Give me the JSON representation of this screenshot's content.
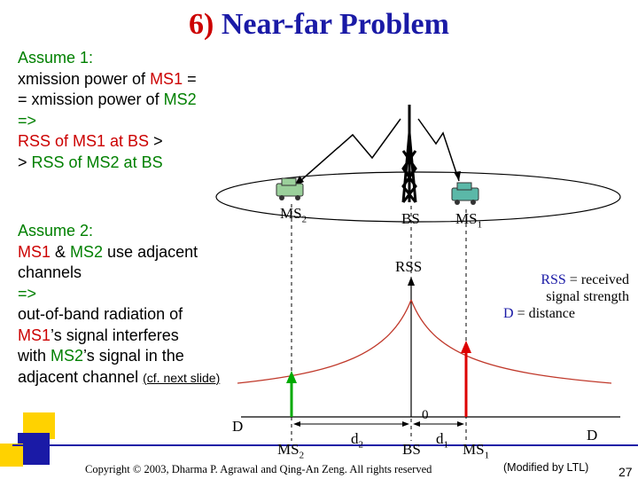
{
  "title": {
    "number": "6)",
    "text": "Near-far Problem"
  },
  "assume1": {
    "heading": "Assume 1:",
    "l1_pre": "xmission power of ",
    "l1_ms": "MS1",
    "l1_post": " =",
    "l2_pre": "= xmission power of ",
    "l2_ms": "MS2",
    "l3": "=>",
    "l4_a": "RSS of MS1 at BS",
    "l4_b": " >",
    "l5_a": "> ",
    "l5_b": "RSS of MS2 at BS"
  },
  "assume2": {
    "heading": "Assume 2:",
    "l1_ms1": "MS1",
    "l1_amp": " & ",
    "l1_ms2": "MS2",
    "l1_post": " use adjacent",
    "l2": "channels",
    "l3": "=>",
    "l4": "out-of-band radiation of",
    "l5_ms": "MS1",
    "l5_post": "’s signal interferes",
    "l6_pre": "with ",
    "l6_ms": "MS2",
    "l6_post": "’s signal in the",
    "l7": "adjacent channel ",
    "link": "(cf. next slide)"
  },
  "diagram": {
    "ms2": "MS",
    "ms2_sub": "2",
    "bs": "BS",
    "ms1": "MS",
    "ms1_sub": "1",
    "rss": "RSS",
    "zero": "0",
    "d_left": "D",
    "d_right": "D",
    "ms2_bottom": "MS",
    "ms2_bottom_sub": "2",
    "d2": "d",
    "d2_sub": "2",
    "bs_bottom": "BS",
    "d1": "d",
    "d1_sub": "1",
    "ms1_bottom": "MS",
    "ms1_bottom_sub": "1"
  },
  "legend": {
    "rss": "RSS",
    "rss_desc": " = received",
    "rss_desc2": "signal strength",
    "d": "D",
    "d_desc": " = distance"
  },
  "footer": {
    "copyright": "Copyright © 2003, Dharma P. Agrawal and Qing-An Zeng. All rights reserved",
    "modified": "(Modified by LTL)",
    "page": "27"
  },
  "colors": {
    "title_blue": "#1a1aa6",
    "title_red": "#cc0000",
    "ms_red": "#cc0000",
    "ms_green": "#008000",
    "curve": "#c0392b",
    "arrow_green": "#00aa00",
    "arrow_red": "#dd0000"
  }
}
